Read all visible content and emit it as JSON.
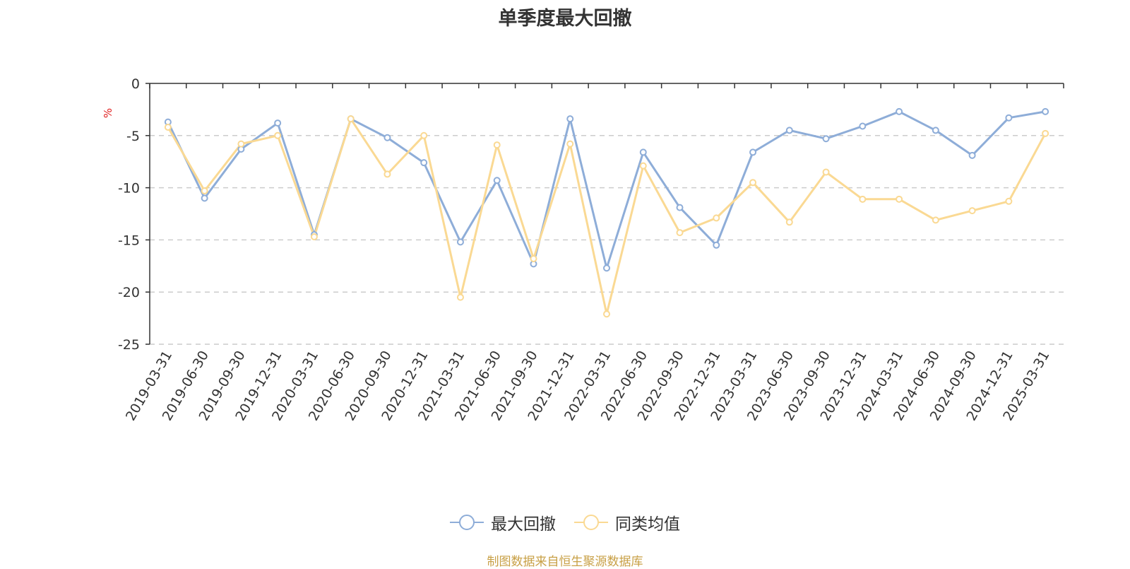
{
  "chart_data": {
    "type": "line",
    "title": "单季度最大回撤",
    "ylabel": "%",
    "ylim": [
      -25,
      0
    ],
    "yticks": [
      0,
      -5,
      -10,
      -15,
      -20,
      -25
    ],
    "grid": true,
    "legend_position": "bottom-center",
    "categories": [
      "2019-03-31",
      "2019-06-30",
      "2019-09-30",
      "2019-12-31",
      "2020-03-31",
      "2020-06-30",
      "2020-09-30",
      "2020-12-31",
      "2021-03-31",
      "2021-06-30",
      "2021-09-30",
      "2021-12-31",
      "2022-03-31",
      "2022-06-30",
      "2022-09-30",
      "2022-12-31",
      "2023-03-31",
      "2023-06-30",
      "2023-09-30",
      "2023-12-31",
      "2024-03-31",
      "2024-06-30",
      "2024-09-30",
      "2024-12-31",
      "2025-03-31"
    ],
    "series": [
      {
        "name": "最大回撤",
        "color": "#8eadd8",
        "values": [
          -3.7,
          -11.0,
          -6.3,
          -3.8,
          -14.5,
          -3.4,
          -5.2,
          -7.6,
          -15.2,
          -9.3,
          -17.3,
          -3.4,
          -17.7,
          -6.6,
          -11.9,
          -15.5,
          -6.6,
          -4.5,
          -5.3,
          -4.1,
          -2.7,
          -4.5,
          -6.9,
          -3.3,
          -2.7
        ]
      },
      {
        "name": "同类均值",
        "color": "#fad993",
        "values": [
          -4.2,
          -10.3,
          -5.8,
          -5.0,
          -14.7,
          -3.4,
          -8.7,
          -5.0,
          -20.5,
          -5.9,
          -16.8,
          -5.8,
          -22.1,
          -7.9,
          -14.3,
          -12.9,
          -9.5,
          -13.3,
          -8.5,
          -11.1,
          -11.1,
          -13.1,
          -12.2,
          -11.3,
          -4.8
        ]
      }
    ]
  },
  "footer": {
    "source_note": "制图数据来自恒生聚源数据库"
  }
}
